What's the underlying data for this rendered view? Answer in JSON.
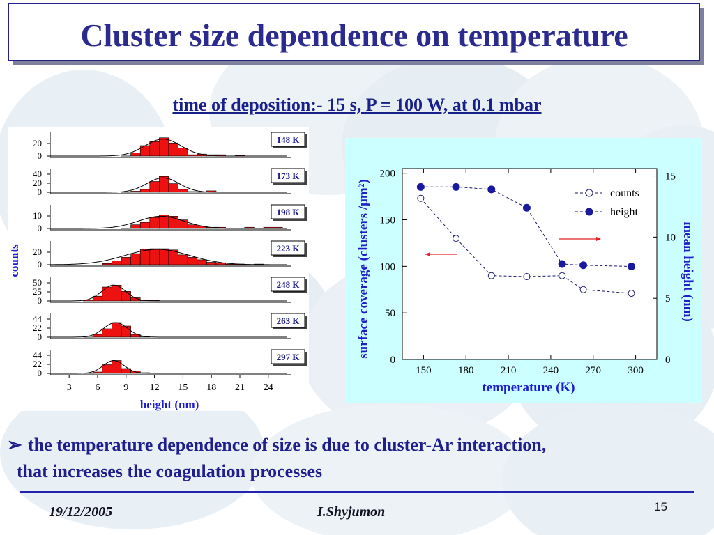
{
  "title": "Cluster size dependence on temperature",
  "subtitle": "time of deposition:-  15 s, P = 100 W, at 0.1 mbar",
  "bullet": {
    "marker": "➢",
    "line1": "the temperature dependence of size is due to cluster-Ar interaction,",
    "line2": "that increases the coagulation processes"
  },
  "footer": {
    "date": "19/12/2005",
    "author": "I.Shyjumon",
    "page": "15"
  },
  "colors": {
    "title": "#2b2b8f",
    "text": "#1e1e8c",
    "bar": "#ee1111",
    "panel_bg": "#ccffff",
    "arrow": "#e02020"
  },
  "chart_data": [
    {
      "type": "bar",
      "xlabel": "height (nm)",
      "ylabel": "counts",
      "xlim": [
        1,
        26
      ],
      "xticks": [
        "3",
        "6",
        "9",
        "12",
        "15",
        "18",
        "21",
        "24"
      ],
      "panels": [
        {
          "label": "148 K",
          "yticks": [
            "20",
            "0"
          ],
          "ymax": 32,
          "x": [
            9,
            10,
            11,
            12,
            13,
            14,
            15,
            16,
            17,
            18,
            19,
            20,
            21
          ],
          "values": [
            0,
            5,
            16,
            22,
            28,
            20,
            12,
            2,
            3,
            2,
            2,
            0,
            1
          ],
          "fit": {
            "mu": 12.9,
            "sigma": 1.9,
            "amp": 26
          }
        },
        {
          "label": "173 K",
          "yticks": [
            "40",
            "20",
            "0"
          ],
          "ymax": 58,
          "x": [
            9,
            10,
            11,
            12,
            13,
            14,
            15,
            16,
            17,
            18,
            19,
            20,
            21
          ],
          "values": [
            0,
            3,
            8,
            30,
            44,
            24,
            8,
            2,
            0,
            4,
            1,
            1,
            1
          ],
          "fit": {
            "mu": 12.9,
            "sigma": 1.7,
            "amp": 40
          }
        },
        {
          "label": "198 K",
          "yticks": [
            "10",
            "0"
          ],
          "ymax": 17,
          "x": [
            9,
            10,
            11,
            12,
            13,
            14,
            15,
            16,
            17,
            18,
            19,
            20,
            21,
            22,
            23,
            24,
            25
          ],
          "values": [
            0,
            3,
            5,
            9,
            11,
            10,
            7,
            3,
            2,
            1,
            1,
            0,
            0,
            1,
            0,
            1,
            1
          ],
          "fit": {
            "mu": 12.7,
            "sigma": 2.4,
            "amp": 10
          }
        },
        {
          "label": "223 K",
          "yticks": [
            "20",
            "0"
          ],
          "ymax": 34,
          "x": [
            7,
            8,
            9,
            10,
            11,
            12,
            13,
            14,
            15,
            16,
            17,
            18,
            19,
            20,
            21,
            22,
            23
          ],
          "values": [
            2,
            6,
            12,
            18,
            25,
            26,
            26,
            24,
            16,
            12,
            8,
            4,
            3,
            1,
            1,
            0,
            1
          ],
          "fit": {
            "mu": 12.3,
            "sigma": 3.4,
            "amp": 25
          }
        },
        {
          "label": "248 K",
          "yticks": [
            "50",
            "25",
            "0"
          ],
          "ymax": 66,
          "x": [
            5,
            6,
            7,
            8,
            9,
            10,
            11,
            12
          ],
          "values": [
            3,
            15,
            44,
            50,
            30,
            10,
            2,
            2
          ],
          "fit": {
            "mu": 7.7,
            "sigma": 1.25,
            "amp": 50
          }
        },
        {
          "label": "263 K",
          "yticks": [
            "44",
            "22",
            "0"
          ],
          "ymax": 60,
          "x": [
            5,
            6,
            7,
            8,
            9,
            10,
            11
          ],
          "values": [
            0,
            8,
            24,
            42,
            32,
            8,
            1
          ],
          "fit": {
            "mu": 7.9,
            "sigma": 1.25,
            "amp": 42
          }
        },
        {
          "label": "297 K",
          "yticks": [
            "44",
            "22",
            "0"
          ],
          "ymax": 60,
          "x": [
            5,
            6,
            7,
            8,
            9,
            10,
            11,
            12,
            13,
            14,
            15,
            16
          ],
          "values": [
            0,
            4,
            25,
            37,
            14,
            7,
            2,
            0,
            0,
            0,
            1,
            1
          ],
          "fit": {
            "mu": 7.7,
            "sigma": 1.1,
            "amp": 37
          }
        }
      ]
    },
    {
      "type": "line",
      "xlabel": "temperature (K)",
      "ylabel_left": "surface coverage (clusters /μm²)",
      "ylabel_right": "mean height (nm)",
      "xlim": [
        135,
        315
      ],
      "ylim_left": [
        0,
        205
      ],
      "ylim_right": [
        0,
        15.6
      ],
      "xticks": [
        "150",
        "180",
        "210",
        "240",
        "270",
        "300"
      ],
      "yticks_left": [
        "0",
        "50",
        "100",
        "150",
        "200"
      ],
      "yticks_right": [
        "0",
        "5",
        "10",
        "15"
      ],
      "grid": false,
      "legend_position": "top-right",
      "series": [
        {
          "name": "counts",
          "axis": "left",
          "marker": "open-circle",
          "x": [
            148,
            173,
            198,
            223,
            248,
            263,
            297
          ],
          "values": [
            173,
            130,
            90,
            89,
            90,
            75,
            71
          ]
        },
        {
          "name": "height",
          "axis": "right",
          "marker": "filled-circle",
          "x": [
            148,
            173,
            198,
            223,
            248,
            263,
            297
          ],
          "values": [
            14.1,
            14.1,
            13.9,
            12.4,
            7.8,
            7.7,
            7.6
          ]
        }
      ]
    }
  ]
}
